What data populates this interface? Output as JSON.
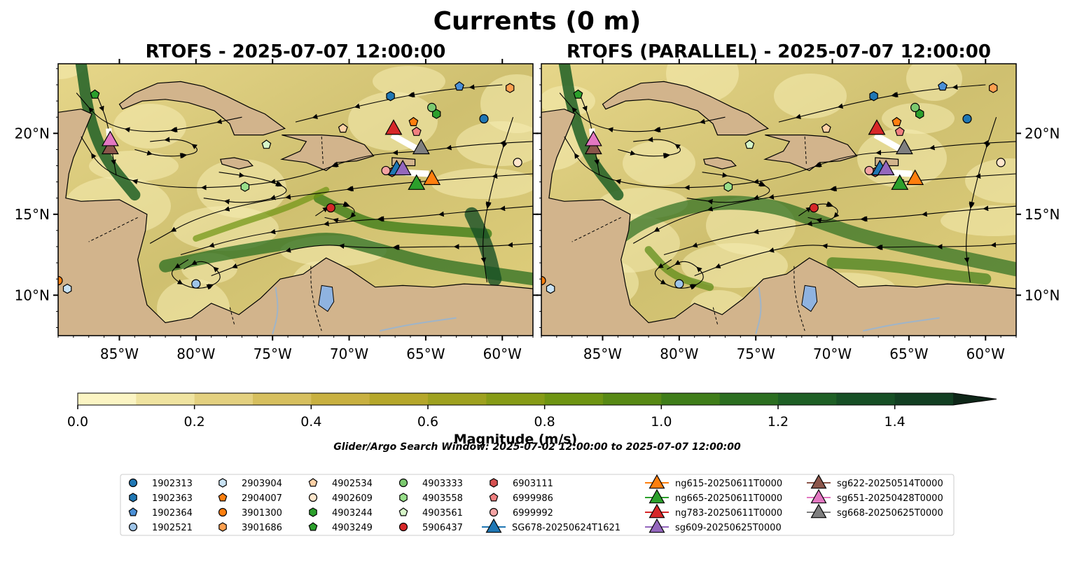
{
  "figure": {
    "suptitle": "Currents (0 m)",
    "search_window": "Glider/Argo Search Window: 2025-07-02 12:00:00 to 2025-07-07 12:00:00"
  },
  "chart_data": {
    "type": "map",
    "colorscale": [
      "#fbf4c3",
      "#efe3a0",
      "#e3d07f",
      "#d6bf5e",
      "#c8b040",
      "#b5a72a",
      "#9ea11f",
      "#869b16",
      "#6e9412",
      "#578914",
      "#3f7d19",
      "#2b6e20",
      "#1e5f25",
      "#164f25",
      "#123f22",
      "#10311d",
      "#0e2618"
    ],
    "panels": [
      {
        "title": "RTOFS - 2025-07-07 12:00:00",
        "lon_range": [
          -89,
          -58
        ],
        "lat_range": [
          7.5,
          24.3
        ],
        "lon_ticks": [
          "85°W",
          "80°W",
          "75°W",
          "70°W",
          "65°W",
          "60°W"
        ],
        "lat_ticks": [
          "10°N",
          "15°N",
          "20°N"
        ],
        "lat_axis_side": "left"
      },
      {
        "title": "RTOFS (PARALLEL) - 2025-07-07 12:00:00",
        "lon_range": [
          -89,
          -58
        ],
        "lat_range": [
          7.5,
          24.3
        ],
        "lon_ticks": [
          "85°W",
          "80°W",
          "75°W",
          "70°W",
          "65°W",
          "60°W"
        ],
        "lat_ticks": [
          "10°N",
          "15°N",
          "20°N"
        ],
        "lat_axis_side": "right"
      }
    ],
    "colorbar": {
      "label": "Magnitude (m/s)",
      "range": [
        0,
        1.5
      ],
      "ticks": [
        "0.0",
        "0.2",
        "0.4",
        "0.6",
        "0.8",
        "1.0",
        "1.2",
        "1.4"
      ],
      "extend": "max"
    },
    "floats": [
      {
        "id": "1902313",
        "marker": "circle",
        "color": "#1f77b4",
        "lon": -61.2,
        "lat": 20.9
      },
      {
        "id": "1902363",
        "marker": "hexagon",
        "color": "#1f77b4",
        "lon": -67.3,
        "lat": 22.3
      },
      {
        "id": "1902364",
        "marker": "pentagon",
        "color": "#4a8fd6",
        "lon": -62.8,
        "lat": 22.9
      },
      {
        "id": "1902521",
        "marker": "circle",
        "color": "#9ec4e8",
        "lon": -80,
        "lat": 10.7
      },
      {
        "id": "2903904",
        "marker": "hexagon",
        "color": "#c8e2f4",
        "lon": -88.4,
        "lat": 10.4
      },
      {
        "id": "2904007",
        "marker": "pentagon",
        "color": "#ff7f0e",
        "lon": -65.8,
        "lat": 20.7
      },
      {
        "id": "3901300",
        "marker": "circle",
        "color": "#ff7f0e",
        "lon": -89,
        "lat": 10.9
      },
      {
        "id": "3901686",
        "marker": "hexagon",
        "color": "#ffa050",
        "lon": -59.5,
        "lat": 22.8
      },
      {
        "id": "4902534",
        "marker": "pentagon",
        "color": "#ffd1a6",
        "lon": -70.4,
        "lat": 20.3
      },
      {
        "id": "4902609",
        "marker": "circle",
        "color": "#ffe6cc",
        "lon": -59,
        "lat": 18.2
      },
      {
        "id": "4903244",
        "marker": "hexagon",
        "color": "#2ca02c",
        "lon": -64.3,
        "lat": 21.2
      },
      {
        "id": "4903249",
        "marker": "pentagon",
        "color": "#2ca02c",
        "lon": -86.6,
        "lat": 22.4
      },
      {
        "id": "4903333",
        "marker": "circle",
        "color": "#7bc96f",
        "lon": -64.6,
        "lat": 21.6
      },
      {
        "id": "4903558",
        "marker": "hexagon",
        "color": "#98df8a",
        "lon": -76.8,
        "lat": 16.7
      },
      {
        "id": "4903561",
        "marker": "pentagon",
        "color": "#d6f5c8",
        "lon": -75.4,
        "lat": 19.3
      },
      {
        "id": "5906437",
        "marker": "circle",
        "color": "#d62728",
        "lon": -71.2,
        "lat": 15.4
      },
      {
        "id": "6903111",
        "marker": "hexagon",
        "color": "#d65050",
        "lon": -67.2,
        "lat": 17.6
      },
      {
        "id": "6999986",
        "marker": "pentagon",
        "color": "#f08080",
        "lon": -65.6,
        "lat": 20.1
      },
      {
        "id": "6999992",
        "marker": "circle",
        "color": "#f4a3a3",
        "lon": -67.6,
        "lat": 17.7
      }
    ],
    "gliders": [
      {
        "id": "SG678-20250624T1621",
        "color": "#1f77b4",
        "lon": -66.9,
        "lat": 17.8
      },
      {
        "id": "ng615-20250611T0000",
        "color": "#ff7f0e",
        "lon": -64.6,
        "lat": 17.2
      },
      {
        "id": "ng665-20250611T0000",
        "color": "#2ca02c",
        "lon": -65.6,
        "lat": 16.9
      },
      {
        "id": "ng783-20250611T0000",
        "color": "#d62728",
        "lon": -67.1,
        "lat": 20.3
      },
      {
        "id": "sg609-20250625T0000",
        "color": "#9467bd",
        "lon": -66.5,
        "lat": 17.8
      },
      {
        "id": "sg622-20250514T0000",
        "color": "#8c564b",
        "lon": -85.6,
        "lat": 19.1
      },
      {
        "id": "sg651-20250428T0000",
        "color": "#e377c2",
        "lon": -85.6,
        "lat": 19.6
      },
      {
        "id": "sg668-20250625T0000",
        "color": "#7f7f7f",
        "lon": -65.3,
        "lat": 19.1
      }
    ]
  }
}
